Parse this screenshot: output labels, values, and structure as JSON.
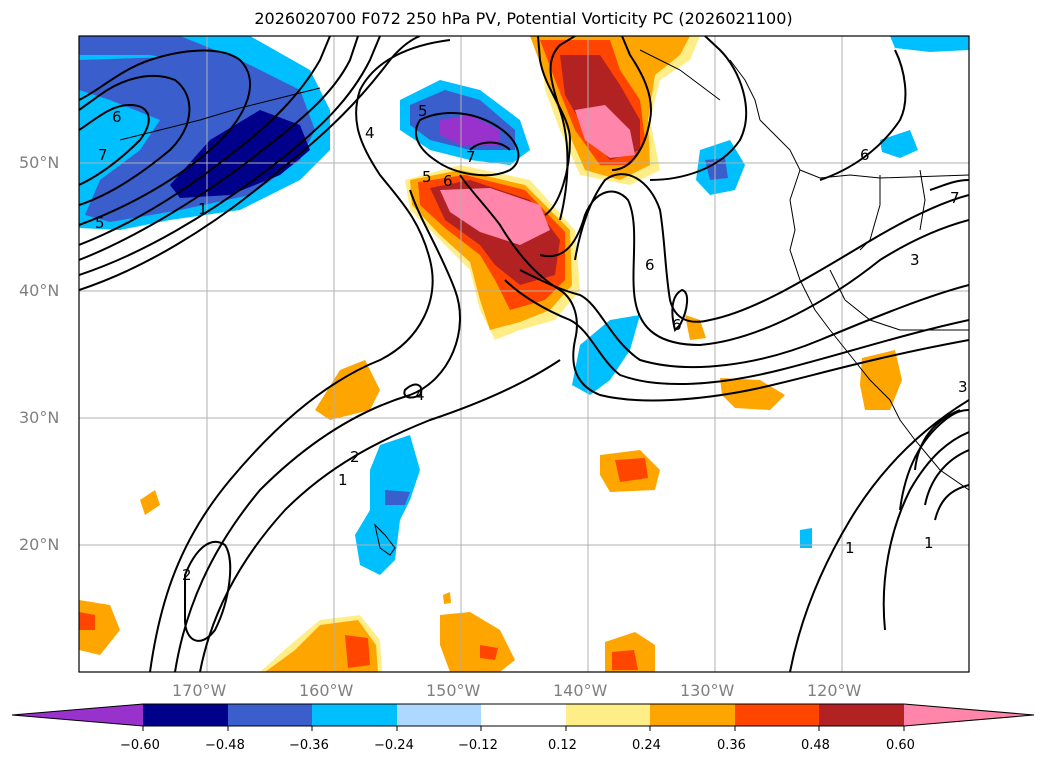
{
  "title": "2026020700 F072 250 hPa PV, Potential Vorticity PC (2026021100)",
  "latitude_labels": [
    "50°N",
    "40°N",
    "30°N",
    "20°N"
  ],
  "longitude_labels": [
    "170°W",
    "160°W",
    "150°W",
    "140°W",
    "130°W",
    "120°W"
  ],
  "colorbar": {
    "tick_labels": [
      "−0.60",
      "−0.48",
      "−0.36",
      "−0.24",
      "−0.12",
      "0.12",
      "0.24",
      "0.36",
      "0.48",
      "0.60"
    ],
    "colors": [
      "#9932cc",
      "#00008b",
      "#3a5fcd",
      "#00bfff",
      "#add8ff",
      "#ffffff",
      "#ffee88",
      "#ffa500",
      "#ff4500",
      "#b22222",
      "#ff85aa"
    ]
  },
  "contour_labels": [
    "6",
    "5",
    "4",
    "7",
    "5",
    "7",
    "6",
    "1",
    "5",
    "6",
    "6",
    "7",
    "3",
    "6",
    "4",
    "2",
    "1",
    "2",
    "1",
    "1",
    "3"
  ]
}
